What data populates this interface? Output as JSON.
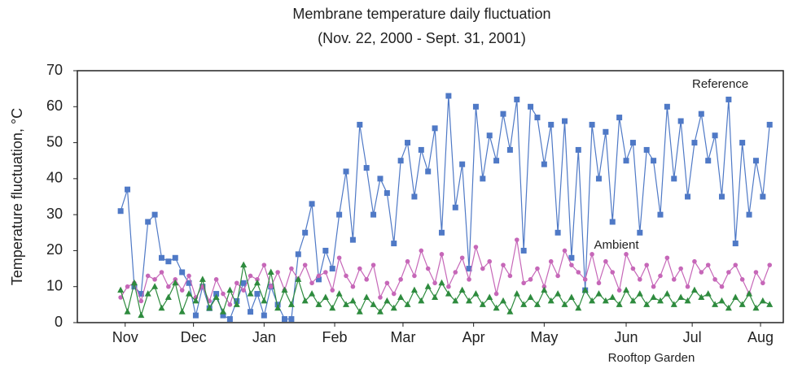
{
  "chart_data": {
    "type": "line",
    "title": "Membrane temperature daily fluctuation",
    "subtitle": "(Nov. 22, 2000 - Sept. 31, 2001)",
    "y_label": "Temperature fluctuation, °C",
    "xlim": [
      -19,
      291
    ],
    "ylim": [
      0,
      70
    ],
    "yticks": [
      0,
      10,
      20,
      30,
      40,
      50,
      60,
      70
    ],
    "xticks": [
      {
        "value": 2,
        "label": "Nov"
      },
      {
        "value": 32,
        "label": "Dec"
      },
      {
        "value": 63,
        "label": "Jan"
      },
      {
        "value": 94,
        "label": "Feb"
      },
      {
        "value": 124,
        "label": "Mar"
      },
      {
        "value": 155,
        "label": "Apr"
      },
      {
        "value": 186,
        "label": "May"
      },
      {
        "value": 222,
        "label": "Jun"
      },
      {
        "value": 251,
        "label": "Jul"
      },
      {
        "value": 281,
        "label": "Aug"
      }
    ],
    "grid": false,
    "x": [
      0,
      3,
      6,
      9,
      12,
      15,
      18,
      21,
      24,
      27,
      30,
      33,
      36,
      39,
      42,
      45,
      48,
      51,
      54,
      57,
      60,
      63,
      66,
      69,
      72,
      75,
      78,
      81,
      84,
      87,
      90,
      93,
      96,
      99,
      102,
      105,
      108,
      111,
      114,
      117,
      120,
      123,
      126,
      129,
      132,
      135,
      138,
      141,
      144,
      147,
      150,
      153,
      156,
      159,
      162,
      165,
      168,
      171,
      174,
      177,
      180,
      183,
      186,
      189,
      192,
      195,
      198,
      201,
      204,
      207,
      210,
      213,
      216,
      219,
      222,
      225,
      228,
      231,
      234,
      237,
      240,
      243,
      246,
      249,
      252,
      255,
      258,
      261,
      264,
      267,
      270,
      273,
      276,
      279,
      282,
      285
    ],
    "series": [
      {
        "name": "Reference",
        "color": "#4f79c6",
        "marker": "square",
        "values": [
          31,
          37,
          10,
          8,
          28,
          30,
          18,
          17,
          18,
          14,
          11,
          2,
          10,
          4,
          8,
          2,
          1,
          6,
          11,
          3,
          8,
          2,
          10,
          5,
          1,
          1,
          19,
          25,
          33,
          12,
          20,
          15,
          30,
          42,
          23,
          55,
          43,
          30,
          40,
          36,
          22,
          45,
          50,
          35,
          48,
          42,
          54,
          25,
          63,
          32,
          44,
          15,
          60,
          40,
          52,
          45,
          58,
          48,
          62,
          20,
          60,
          57,
          44,
          55,
          25,
          56,
          18,
          48,
          9,
          55,
          40,
          53,
          28,
          57,
          45,
          50,
          25,
          48,
          45,
          30,
          60,
          40,
          56,
          35,
          50,
          58,
          45,
          52,
          35,
          62,
          22,
          50,
          30,
          45,
          35,
          55
        ]
      },
      {
        "name": "Ambient",
        "color": "#c667b8",
        "marker": "circle",
        "values": [
          7,
          10,
          11,
          6,
          13,
          12,
          14,
          10,
          12,
          9,
          13,
          7,
          10,
          6,
          12,
          8,
          5,
          11,
          9,
          13,
          12,
          16,
          10,
          14,
          9,
          15,
          12,
          16,
          11,
          13,
          14,
          9,
          18,
          13,
          10,
          15,
          12,
          16,
          7,
          11,
          8,
          12,
          17,
          13,
          20,
          15,
          11,
          19,
          10,
          14,
          18,
          12,
          21,
          15,
          17,
          8,
          16,
          13,
          23,
          11,
          12,
          15,
          10,
          17,
          13,
          20,
          16,
          14,
          12,
          19,
          11,
          17,
          14,
          9,
          19,
          15,
          12,
          16,
          10,
          13,
          18,
          12,
          15,
          10,
          17,
          14,
          16,
          12,
          10,
          14,
          16,
          12,
          8,
          14,
          11,
          16
        ]
      },
      {
        "name": "Rooftop Garden",
        "color": "#2e8b3e",
        "marker": "triangle",
        "values": [
          9,
          3,
          11,
          2,
          8,
          10,
          4,
          7,
          11,
          3,
          8,
          6,
          12,
          4,
          7,
          3,
          9,
          5,
          16,
          8,
          11,
          6,
          14,
          4,
          9,
          5,
          12,
          6,
          8,
          5,
          7,
          4,
          8,
          5,
          6,
          3,
          7,
          5,
          3,
          6,
          4,
          7,
          5,
          9,
          6,
          10,
          7,
          11,
          8,
          6,
          9,
          6,
          8,
          5,
          7,
          4,
          6,
          3,
          8,
          5,
          7,
          5,
          9,
          6,
          8,
          5,
          7,
          4,
          9,
          6,
          8,
          6,
          7,
          5,
          9,
          6,
          8,
          5,
          7,
          6,
          8,
          5,
          7,
          6,
          9,
          7,
          8,
          5,
          6,
          4,
          7,
          5,
          8,
          4,
          6,
          5
        ]
      }
    ]
  }
}
